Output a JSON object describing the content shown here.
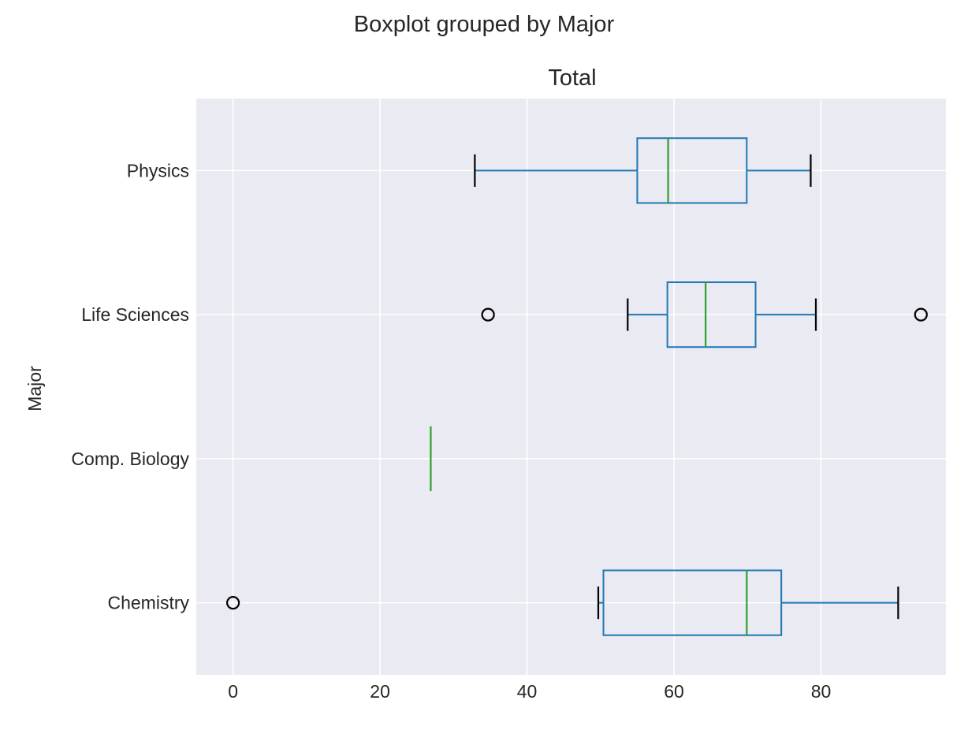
{
  "chart_data": {
    "type": "boxplot",
    "orientation": "horizontal",
    "suptitle": "Boxplot grouped by Major",
    "title": "Total",
    "xlabel": "",
    "ylabel": "Major",
    "xlim": [
      -5,
      97
    ],
    "xticks": [
      0,
      20,
      40,
      60,
      80
    ],
    "grid": true,
    "style": {
      "background": "#eaeaf2",
      "grid_color": "#ffffff",
      "box_color": "#1f77b4",
      "median_color": "#2ca02c",
      "cap_color": "#000000",
      "flier_color": "#000000"
    },
    "categories": [
      "Chemistry",
      "Comp. Biology",
      "Life Sciences",
      "Physics"
    ],
    "series": [
      {
        "category": "Chemistry",
        "whisker_low": 49.7,
        "q1": 50.4,
        "median": 69.9,
        "q3": 74.6,
        "whisker_high": 90.5,
        "fliers": [
          0.0
        ]
      },
      {
        "category": "Comp. Biology",
        "whisker_low": 26.9,
        "q1": 26.9,
        "median": 26.9,
        "q3": 26.9,
        "whisker_high": 26.9,
        "fliers": []
      },
      {
        "category": "Life Sciences",
        "whisker_low": 53.7,
        "q1": 59.1,
        "median": 64.3,
        "q3": 71.1,
        "whisker_high": 79.3,
        "fliers": [
          34.7,
          93.6
        ]
      },
      {
        "category": "Physics",
        "whisker_low": 32.9,
        "q1": 55.0,
        "median": 59.2,
        "q3": 69.9,
        "whisker_high": 78.6,
        "fliers": []
      }
    ]
  }
}
